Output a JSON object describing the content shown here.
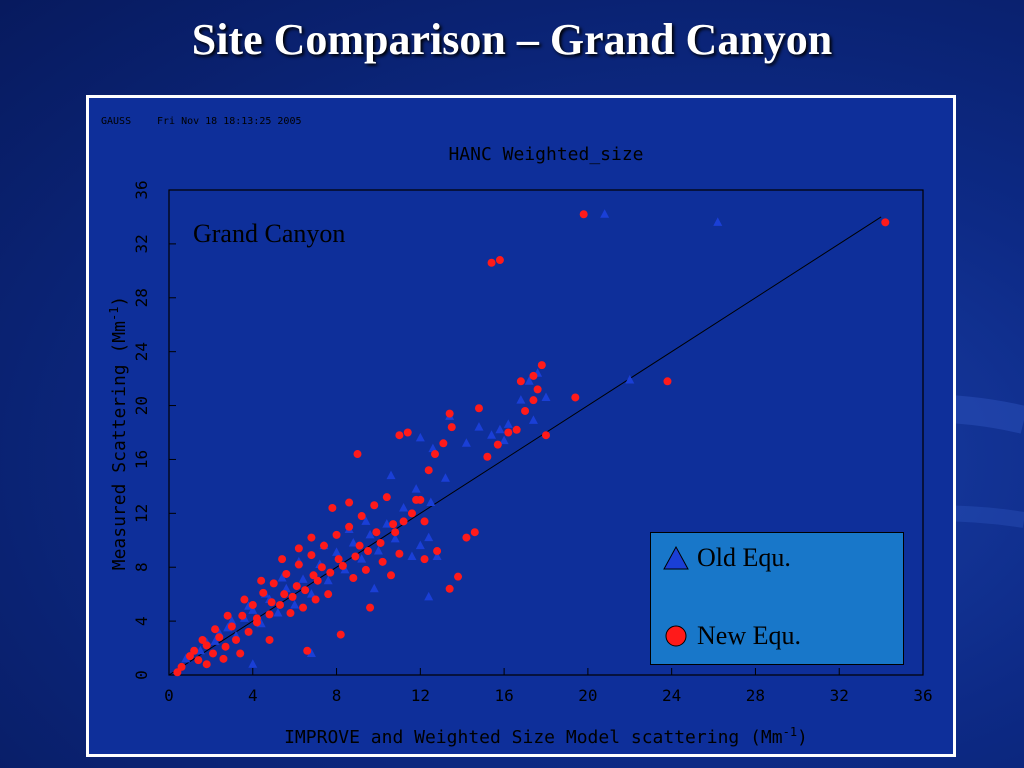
{
  "slide": {
    "title": "Site Comparison – Grand Canyon"
  },
  "chart_data": {
    "type": "scatter",
    "header_left": "GAUSS",
    "header_date": "Fri Nov 18 18:13:25 2005",
    "title": "HANC Weighted_size",
    "annotation": "Grand Canyon",
    "xlabel": "IMPROVE and Weighted Size Model scattering (Mm",
    "xlabel_exp": "-1",
    "xlabel_end": ")",
    "ylabel": "Measured Scattering (Mm",
    "ylabel_exp": "-1",
    "ylabel_end": ")",
    "xlim": [
      0,
      36
    ],
    "ylim": [
      0,
      36
    ],
    "xticks": [
      "0",
      "4",
      "8",
      "12",
      "16",
      "20",
      "24",
      "28",
      "32",
      "36"
    ],
    "yticks": [
      "0",
      "4",
      "8",
      "12",
      "16",
      "20",
      "24",
      "28",
      "32",
      "36"
    ],
    "one_to_one_line": [
      [
        0,
        0
      ],
      [
        34,
        34
      ]
    ],
    "legend": {
      "placement": "bottom-right",
      "background": "#1877c9"
    },
    "series": [
      {
        "name": "Old Equ.",
        "marker": "triangle",
        "color": "#1a3fd6",
        "points": [
          [
            0.8,
            1.2
          ],
          [
            1.5,
            1.8
          ],
          [
            2.2,
            2.5
          ],
          [
            2.8,
            3.5
          ],
          [
            3.2,
            2.9
          ],
          [
            3.6,
            4.2
          ],
          [
            4,
            4.8
          ],
          [
            4.4,
            3.8
          ],
          [
            4.8,
            5.6
          ],
          [
            5.2,
            4.6
          ],
          [
            5.6,
            6.4
          ],
          [
            6,
            5.2
          ],
          [
            6.4,
            7.1
          ],
          [
            6.8,
            6
          ],
          [
            7.2,
            8.2
          ],
          [
            7.6,
            7
          ],
          [
            8,
            9.1
          ],
          [
            8.4,
            7.8
          ],
          [
            8.8,
            9.8
          ],
          [
            9.2,
            8.6
          ],
          [
            9.6,
            10.4
          ],
          [
            10,
            9.2
          ],
          [
            10.4,
            11.2
          ],
          [
            10.8,
            10.1
          ],
          [
            11.2,
            12.4
          ],
          [
            11.6,
            8.8
          ],
          [
            12,
            9.6
          ],
          [
            12.4,
            10.2
          ],
          [
            12.8,
            8.8
          ],
          [
            12,
            17.6
          ],
          [
            12.6,
            16.8
          ],
          [
            13.4,
            19.2
          ],
          [
            14.2,
            17.2
          ],
          [
            14.8,
            18.4
          ],
          [
            15.4,
            17.8
          ],
          [
            15.8,
            18.2
          ],
          [
            16.2,
            18.6
          ],
          [
            16.8,
            20.4
          ],
          [
            17.2,
            21.8
          ],
          [
            17.6,
            22.4
          ],
          [
            18,
            20.6
          ],
          [
            12.5,
            12.8
          ],
          [
            13.2,
            14.6
          ],
          [
            11.8,
            13.8
          ],
          [
            10.6,
            14.8
          ],
          [
            9.4,
            11.4
          ],
          [
            8.6,
            10.8
          ],
          [
            7.4,
            9.6
          ],
          [
            6.2,
            8.4
          ],
          [
            5.4,
            7.2
          ],
          [
            4.6,
            6
          ],
          [
            3.8,
            5.1
          ],
          [
            3,
            4
          ],
          [
            2.4,
            3.1
          ],
          [
            1.8,
            2.4
          ],
          [
            20.8,
            34.2
          ],
          [
            26.2,
            33.6
          ],
          [
            22,
            21.9
          ],
          [
            6.8,
            1.6
          ],
          [
            4,
            0.8
          ],
          [
            12.4,
            5.8
          ],
          [
            9.8,
            6.4
          ],
          [
            16,
            17.4
          ],
          [
            17.4,
            18.9
          ]
        ]
      },
      {
        "name": "New Equ.",
        "marker": "circle",
        "color": "#ff1a1a",
        "points": [
          [
            0.6,
            0.6
          ],
          [
            1,
            1.4
          ],
          [
            1.4,
            1.1
          ],
          [
            1.8,
            2.2
          ],
          [
            2.1,
            1.6
          ],
          [
            2.4,
            2.8
          ],
          [
            2.7,
            2.1
          ],
          [
            3,
            3.6
          ],
          [
            3.2,
            2.6
          ],
          [
            3.5,
            4.4
          ],
          [
            3.8,
            3.2
          ],
          [
            4,
            5.2
          ],
          [
            4.2,
            3.9
          ],
          [
            4.5,
            6.1
          ],
          [
            4.8,
            4.5
          ],
          [
            5,
            6.8
          ],
          [
            5.3,
            5.2
          ],
          [
            5.6,
            7.5
          ],
          [
            5.9,
            5.8
          ],
          [
            6.2,
            8.2
          ],
          [
            6.5,
            6.3
          ],
          [
            6.8,
            8.9
          ],
          [
            7.1,
            7
          ],
          [
            7.4,
            9.6
          ],
          [
            7.7,
            7.6
          ],
          [
            8,
            10.4
          ],
          [
            8.3,
            8.1
          ],
          [
            8.6,
            11
          ],
          [
            8.9,
            8.8
          ],
          [
            9.2,
            11.8
          ],
          [
            9.5,
            9.2
          ],
          [
            9.8,
            12.6
          ],
          [
            10.1,
            9.8
          ],
          [
            10.4,
            13.2
          ],
          [
            10.8,
            10.6
          ],
          [
            11.2,
            11.4
          ],
          [
            11.6,
            12
          ],
          [
            12,
            13
          ],
          [
            12.4,
            15.2
          ],
          [
            12.7,
            16.4
          ],
          [
            13.1,
            17.2
          ],
          [
            13.5,
            18.4
          ],
          [
            14.2,
            10.2
          ],
          [
            14.6,
            10.6
          ],
          [
            15.2,
            16.2
          ],
          [
            15.7,
            17.1
          ],
          [
            16.2,
            18
          ],
          [
            16.6,
            18.2
          ],
          [
            17,
            19.6
          ],
          [
            17.4,
            20.4
          ],
          [
            17.6,
            21.2
          ],
          [
            16.8,
            21.8
          ],
          [
            17.4,
            22.2
          ],
          [
            17.8,
            23
          ],
          [
            18,
            17.8
          ],
          [
            11.4,
            18
          ],
          [
            11,
            17.8
          ],
          [
            13.4,
            19.4
          ],
          [
            14.8,
            19.8
          ],
          [
            9,
            16.4
          ],
          [
            8.6,
            12.8
          ],
          [
            7.8,
            12.4
          ],
          [
            6.8,
            10.2
          ],
          [
            6.2,
            9.4
          ],
          [
            5.4,
            8.6
          ],
          [
            4.4,
            7
          ],
          [
            3.6,
            5.6
          ],
          [
            2.8,
            4.4
          ],
          [
            2.2,
            3.4
          ],
          [
            1.6,
            2.6
          ],
          [
            1.2,
            1.8
          ],
          [
            15.4,
            30.6
          ],
          [
            15.8,
            30.8
          ],
          [
            19.8,
            34.2
          ],
          [
            34.2,
            33.6
          ],
          [
            23.8,
            21.8
          ],
          [
            19.4,
            20.6
          ],
          [
            13.4,
            6.4
          ],
          [
            13.8,
            7.3
          ],
          [
            12.2,
            11.4
          ],
          [
            11.8,
            13
          ],
          [
            10.6,
            7.4
          ],
          [
            9.6,
            5
          ],
          [
            8.2,
            3
          ],
          [
            6.6,
            1.8
          ],
          [
            4.8,
            2.6
          ],
          [
            3.4,
            1.6
          ],
          [
            2.6,
            1.2
          ],
          [
            1.8,
            0.8
          ],
          [
            0.4,
            0.2
          ],
          [
            5.8,
            4.6
          ],
          [
            6.4,
            5
          ],
          [
            7,
            5.6
          ],
          [
            7.6,
            6
          ],
          [
            8.8,
            7.2
          ],
          [
            9.4,
            7.8
          ],
          [
            10.2,
            8.4
          ],
          [
            11,
            9
          ],
          [
            12.2,
            8.6
          ],
          [
            12.8,
            9.2
          ],
          [
            4.2,
            4.2
          ],
          [
            4.9,
            5.4
          ],
          [
            5.5,
            6
          ],
          [
            6.1,
            6.6
          ],
          [
            6.9,
            7.4
          ],
          [
            7.3,
            8
          ],
          [
            8.1,
            8.6
          ],
          [
            9.1,
            9.6
          ],
          [
            9.9,
            10.6
          ],
          [
            10.7,
            11.2
          ]
        ]
      }
    ]
  }
}
